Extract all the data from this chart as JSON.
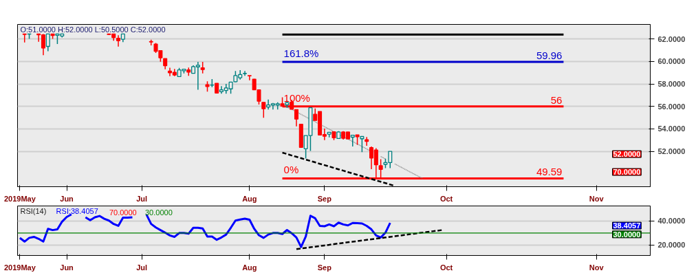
{
  "chart_data": [
    {
      "type": "candlestick",
      "ylim": [
        48.85,
        63.3
      ],
      "grid": "y",
      "categories": [
        "2019May",
        null,
        null,
        null,
        null,
        null,
        null,
        null,
        null,
        null,
        "Jun",
        null,
        null,
        null,
        null,
        null,
        null,
        null,
        null,
        null,
        null,
        null,
        null,
        null,
        null,
        null,
        "Jul",
        null,
        null,
        null,
        null,
        null,
        null,
        null,
        null,
        null,
        null,
        null,
        null,
        null,
        null,
        null,
        null,
        null,
        null,
        null,
        null,
        null,
        null,
        "Aug",
        null,
        null,
        null,
        null,
        null,
        null,
        null,
        null,
        null,
        null,
        null,
        null,
        null,
        null,
        null,
        "Sep",
        null,
        null,
        null,
        null,
        null,
        null,
        null,
        null,
        null,
        null,
        null,
        null,
        null,
        null,
        null,
        null,
        null,
        null,
        null,
        null,
        null,
        null,
        null,
        null,
        null,
        "Oct",
        null,
        null,
        null,
        null,
        null,
        null,
        null,
        null,
        null,
        null,
        null,
        null,
        null,
        null,
        null,
        null,
        null,
        null,
        null,
        null,
        null,
        null,
        null,
        null,
        null,
        null,
        null,
        null,
        null,
        null,
        null,
        "Nov",
        null,
        null,
        null,
        null,
        null,
        null,
        null,
        null,
        null,
        null,
        null
      ],
      "yticks": [
        {
          "value": 52,
          "label": "52.0000"
        },
        {
          "value": 54,
          "label": "54.0000"
        },
        {
          "value": 56,
          "label": "56.0000"
        },
        {
          "value": 58,
          "label": "58.0000"
        },
        {
          "value": 60,
          "label": "60.0000"
        },
        {
          "value": 62,
          "label": "62.0000"
        }
      ],
      "ohlc": [
        null,
        [
          62.45,
          62.45,
          61.69,
          62.41
        ],
        [
          62.43,
          62.45,
          62.02,
          62.45
        ],
        null,
        [
          62.45,
          62.45,
          61.75,
          62.37
        ],
        [
          62.37,
          62.45,
          60.56,
          61.2
        ],
        [
          61.34,
          62.45,
          60.91,
          62.45
        ],
        [
          62.45,
          62.45,
          62.02,
          62.31
        ],
        [
          62.33,
          62.45,
          61.55,
          62.45
        ],
        [
          62.27,
          62.45,
          62.13,
          62.45
        ],
        null,
        null,
        null,
        null,
        null,
        null,
        null,
        null,
        null,
        [
          62.45,
          62.45,
          62.37,
          62.4
        ],
        [
          62.45,
          62.45,
          61.85,
          62.13
        ],
        [
          62.06,
          62.33,
          61.32,
          61.85
        ],
        [
          61.98,
          62.45,
          61.73,
          62.45
        ],
        null,
        null,
        null,
        null,
        null,
        [
          61.77,
          61.94,
          61.44,
          61.74
        ],
        [
          61.55,
          61.65,
          60.76,
          60.91
        ],
        [
          60.97,
          60.97,
          59.98,
          60.33
        ],
        [
          60.26,
          60.26,
          59.31,
          59.62
        ],
        [
          59.15,
          59.44,
          58.69,
          59.0
        ],
        [
          59.03,
          59.33,
          58.69,
          58.8
        ],
        [
          58.65,
          59.42,
          58.65,
          59.25
        ],
        [
          59.17,
          59.31,
          58.94,
          59.31
        ],
        [
          59.25,
          59.46,
          58.73,
          59.05
        ],
        [
          58.94,
          59.66,
          58.94,
          59.54
        ],
        [
          59.52,
          59.97,
          57.48,
          59.67
        ],
        [
          59.44,
          59.97,
          58.94,
          59.28
        ],
        [
          57.93,
          58.24,
          57.31,
          57.77
        ],
        [
          57.89,
          58.43,
          57.72,
          57.91
        ],
        [
          58.05,
          58.05,
          57.19,
          57.19
        ],
        [
          57.31,
          57.81,
          57.13,
          57.47
        ],
        [
          57.42,
          58.01,
          57.13,
          57.64
        ],
        [
          57.56,
          58.19,
          57.13,
          58.16
        ],
        [
          58.2,
          59.15,
          58.15,
          58.74
        ],
        [
          58.55,
          59.23,
          58.38,
          58.84
        ],
        [
          58.92,
          59.15,
          58.73,
          58.94
        ],
        [
          58.74,
          58.74,
          58.32,
          58.72
        ],
        [
          58.43,
          58.45,
          57.48,
          57.48
        ],
        [
          57.47,
          57.47,
          56.17,
          56.46
        ],
        [
          56.36,
          56.36,
          54.99,
          55.79
        ],
        [
          55.94,
          56.61,
          55.72,
          56.13
        ],
        [
          56.11,
          56.3,
          55.72,
          56.24
        ],
        [
          56.11,
          56.36,
          55.72,
          56.24
        ],
        [
          56.24,
          56.81,
          56.03,
          56.03
        ],
        [
          56.14,
          56.52,
          55.88,
          56.34
        ],
        [
          56.38,
          56.6,
          55.74,
          55.74
        ],
        [
          55.72,
          55.72,
          54.23,
          54.87
        ],
        [
          54.42,
          54.42,
          52.35,
          52.35
        ],
        [
          52.23,
          53.41,
          51.36,
          53.41
        ],
        [
          53.41,
          55.88,
          52.04,
          55.88
        ],
        [
          55.3,
          55.82,
          54.75,
          54.75
        ],
        [
          55.55,
          55.55,
          53.45,
          53.45
        ],
        [
          53.49,
          54.03,
          53.0,
          53.35
        ],
        [
          53.53,
          53.7,
          53.24,
          53.7
        ],
        [
          53.74,
          53.74,
          53.0,
          53.2
        ],
        [
          53.14,
          53.8,
          53.14,
          53.72
        ],
        [
          53.72,
          53.8,
          53.05,
          53.16
        ],
        [
          53.72,
          53.72,
          53.1,
          53.1
        ],
        [
          53.26,
          53.44,
          52.43,
          53.44
        ],
        [
          53.47,
          53.47,
          52.58,
          53.3
        ],
        [
          53.12,
          53.32,
          51.93,
          53.32
        ],
        [
          53.03,
          53.28,
          52.49,
          52.89
        ],
        [
          52.33,
          52.43,
          50.41,
          51.4
        ],
        [
          52.12,
          52.28,
          49.58,
          50.8
        ],
        [
          50.72,
          51.3,
          49.67,
          50.39
        ],
        [
          50.84,
          51.35,
          50.5,
          51.0
        ],
        [
          51.0,
          52.0,
          50.5,
          52.0
        ],
        null,
        null,
        null,
        null,
        null,
        null,
        null,
        null,
        null,
        null,
        null,
        null,
        null,
        null,
        null,
        null,
        null,
        null,
        null,
        null,
        null,
        null,
        null,
        null,
        null,
        null,
        null,
        null,
        null,
        null,
        null,
        null,
        null,
        null,
        null,
        null,
        null,
        null,
        null,
        null,
        null,
        null,
        null,
        null,
        null,
        null,
        null,
        null,
        null,
        null,
        null,
        null,
        null,
        null,
        null
      ],
      "colors": [
        null,
        "#ff0000",
        "#008080",
        null,
        "#ff0000",
        "#ff0000",
        "#008080",
        "#ff0000",
        "#008080",
        "#008080",
        null,
        null,
        null,
        null,
        null,
        null,
        null,
        null,
        null,
        "#ff0000",
        "#ff0000",
        "#ff0000",
        "#008080",
        null,
        null,
        null,
        null,
        null,
        "#ff0000",
        "#ff0000",
        "#ff0000",
        "#ff0000",
        "#ff0000",
        "#ff0000",
        "#008080",
        "#008080",
        "#ff0000",
        "#008080",
        "#008080",
        "#ff0000",
        "#ff0000",
        "#008080",
        "#ff0000",
        "#008080",
        "#008080",
        "#008080",
        "#008080",
        "#008080",
        "#008080",
        "#ff0000",
        "#ff0000",
        "#ff0000",
        "#ff0000",
        "#008080",
        "#008080",
        "#008080",
        "#ff0000",
        "#008080",
        "#ff0000",
        "#ff0000",
        "#ff0000",
        "#008080",
        "#008080",
        "#ff0000",
        "#ff0000",
        "#ff0000",
        "#008080",
        "#ff0000",
        "#008080",
        "#ff0000",
        "#ff0000",
        "#008080",
        "#ff0000",
        "#008080",
        "#ff0000",
        "#ff0000",
        "#ff0000",
        "#ff0000",
        "#008080",
        "#008080",
        null,
        null,
        null,
        null,
        null,
        null,
        null,
        null,
        null,
        null,
        null,
        null,
        null,
        null,
        null,
        null,
        null,
        null,
        null,
        null,
        null,
        null,
        null,
        null,
        null,
        null,
        null,
        null,
        null,
        null,
        null,
        null,
        null,
        null,
        null,
        null,
        null,
        null,
        null,
        null,
        null,
        null,
        null,
        null,
        null,
        null,
        null,
        null,
        null,
        null,
        null,
        null,
        null,
        null,
        null
      ],
      "series": [
        {
          "type": "line",
          "color": "#000000",
          "line_style": "solid",
          "values": [
            null,
            null,
            null,
            null,
            null,
            null,
            null,
            null,
            null,
            null,
            null,
            null,
            null,
            null,
            null,
            null,
            null,
            null,
            null,
            null,
            null,
            null,
            null,
            null,
            null,
            null,
            null,
            null,
            null,
            null,
            null,
            null,
            null,
            null,
            null,
            null,
            null,
            null,
            null,
            null,
            null,
            null,
            null,
            null,
            null,
            null,
            null,
            null,
            null,
            null,
            null,
            null,
            null,
            null,
            null,
            null,
            62.4,
            62.4,
            62.4,
            62.4,
            62.4,
            62.4,
            62.4,
            62.4,
            62.4,
            62.4,
            62.4,
            62.4,
            62.4,
            62.4,
            62.4,
            62.4,
            62.4,
            62.4,
            62.4,
            62.4,
            62.4,
            62.4,
            62.4,
            62.4,
            62.4,
            62.4,
            62.4,
            62.4,
            62.4,
            62.4,
            62.4,
            62.4,
            62.4,
            62.4,
            62.4,
            62.4,
            62.4,
            62.4,
            62.4,
            62.4,
            62.4,
            62.4,
            62.4,
            62.4,
            62.4,
            62.4,
            62.4,
            62.4,
            62.4,
            62.4,
            62.4,
            62.4,
            62.4,
            62.4,
            62.4,
            62.4,
            62.4,
            62.4,
            62.4,
            62.4,
            62.4,
            null,
            null,
            null,
            null,
            null,
            null,
            null,
            null,
            null,
            null,
            null,
            null,
            null,
            null,
            null,
            null,
            null,
            null
          ]
        },
        {
          "type": "line",
          "color": "#0000cc",
          "line_style": "solid",
          "values": [
            null,
            null,
            null,
            null,
            null,
            null,
            null,
            null,
            null,
            null,
            null,
            null,
            null,
            null,
            null,
            null,
            null,
            null,
            null,
            null,
            null,
            null,
            null,
            null,
            null,
            null,
            null,
            null,
            null,
            null,
            null,
            null,
            null,
            null,
            null,
            null,
            null,
            null,
            null,
            null,
            null,
            null,
            null,
            null,
            null,
            null,
            null,
            null,
            null,
            null,
            null,
            null,
            null,
            null,
            null,
            null,
            59.96,
            59.96,
            59.96,
            59.96,
            59.96,
            59.96,
            59.96,
            59.96,
            59.96,
            59.96,
            59.96,
            59.96,
            59.96,
            59.96,
            59.96,
            59.96,
            59.96,
            59.96,
            59.96,
            59.96,
            59.96,
            59.96,
            59.96,
            59.96,
            59.96,
            59.96,
            59.96,
            59.96,
            59.96,
            59.96,
            59.96,
            59.96,
            59.96,
            59.96,
            59.96,
            59.96,
            59.96,
            59.96,
            59.96,
            59.96,
            59.96,
            59.96,
            59.96,
            59.96,
            59.96,
            59.96,
            59.96,
            59.96,
            59.96,
            59.96,
            59.96,
            59.96,
            59.96,
            59.96,
            59.96,
            59.96,
            59.96,
            59.96,
            59.96,
            59.96,
            59.96,
            null,
            null,
            null,
            null,
            null,
            null,
            null,
            null,
            null,
            null,
            null,
            null,
            null,
            null,
            null,
            null,
            null,
            null
          ]
        },
        {
          "type": "line",
          "color": "#ff0000",
          "line_style": "solid",
          "values": [
            null,
            null,
            null,
            null,
            null,
            null,
            null,
            null,
            null,
            null,
            null,
            null,
            null,
            null,
            null,
            null,
            null,
            null,
            null,
            null,
            null,
            null,
            null,
            null,
            null,
            null,
            null,
            null,
            null,
            null,
            null,
            null,
            null,
            null,
            null,
            null,
            null,
            null,
            null,
            null,
            null,
            null,
            null,
            null,
            null,
            null,
            null,
            null,
            null,
            null,
            null,
            null,
            null,
            null,
            null,
            null,
            56,
            56,
            56,
            56,
            56,
            56,
            56,
            56,
            56,
            56,
            56,
            56,
            56,
            56,
            56,
            56,
            56,
            56,
            56,
            56,
            56,
            56,
            56,
            56,
            56,
            56,
            56,
            56,
            56,
            56,
            56,
            56,
            56,
            56,
            56,
            56,
            56,
            56,
            56,
            56,
            56,
            56,
            56,
            56,
            56,
            56,
            56,
            56,
            56,
            56,
            56,
            56,
            56,
            56,
            56,
            56,
            56,
            56,
            56,
            56,
            56,
            null,
            null,
            null,
            null,
            null,
            null,
            null,
            null,
            null,
            null,
            null,
            null,
            null,
            null,
            null,
            null,
            null,
            null
          ]
        },
        {
          "type": "line",
          "color": "#ff0000",
          "line_style": "solid",
          "values": [
            null,
            null,
            null,
            null,
            null,
            null,
            null,
            null,
            null,
            null,
            null,
            null,
            null,
            null,
            null,
            null,
            null,
            null,
            null,
            null,
            null,
            null,
            null,
            null,
            null,
            null,
            null,
            null,
            null,
            null,
            null,
            null,
            null,
            null,
            null,
            null,
            null,
            null,
            null,
            null,
            null,
            null,
            null,
            null,
            null,
            null,
            null,
            null,
            null,
            null,
            null,
            null,
            null,
            null,
            null,
            null,
            49.59,
            49.59,
            49.59,
            49.59,
            49.59,
            49.59,
            49.59,
            49.59,
            49.59,
            49.59,
            49.59,
            49.59,
            49.59,
            49.59,
            49.59,
            49.59,
            49.59,
            49.59,
            49.59,
            49.59,
            49.59,
            49.59,
            49.59,
            49.59,
            49.59,
            49.59,
            49.59,
            49.59,
            49.59,
            49.59,
            49.59,
            49.59,
            49.59,
            49.59,
            49.59,
            49.59,
            49.59,
            49.59,
            49.59,
            49.59,
            49.59,
            49.59,
            49.59,
            49.59,
            49.59,
            49.59,
            49.59,
            49.59,
            49.59,
            49.59,
            49.59,
            49.59,
            49.59,
            49.59,
            49.59,
            49.59,
            49.59,
            49.59,
            49.59,
            49.59,
            49.59,
            null,
            null,
            null,
            null,
            null,
            null,
            null,
            null,
            null,
            null,
            null,
            null,
            null,
            null,
            null,
            null,
            null,
            null
          ]
        },
        {
          "type": "line",
          "color": "#000000",
          "line_style": "dashed",
          "values": [
            null,
            null,
            null,
            null,
            null,
            null,
            null,
            null,
            null,
            null,
            null,
            null,
            null,
            null,
            null,
            null,
            null,
            null,
            null,
            null,
            null,
            null,
            null,
            null,
            null,
            null,
            null,
            null,
            null,
            null,
            null,
            null,
            null,
            null,
            null,
            null,
            null,
            null,
            null,
            null,
            null,
            null,
            null,
            null,
            null,
            null,
            null,
            null,
            null,
            null,
            null,
            null,
            null,
            null,
            null,
            null,
            51.88,
            51.76,
            51.63,
            51.51,
            51.39,
            51.26,
            51.14,
            51.02,
            50.89,
            50.77,
            50.65,
            50.52,
            50.4,
            50.28,
            50.15,
            50.03,
            49.91,
            49.78,
            49.66,
            49.54,
            49.41,
            49.29,
            49.17,
            49.04,
            48.92,
            null,
            null,
            null,
            null,
            null,
            null,
            null,
            null,
            null,
            null,
            null,
            null,
            null,
            null,
            null,
            null,
            null,
            null,
            null,
            null,
            null,
            null,
            null,
            null,
            null,
            null,
            null,
            null,
            null,
            null,
            null,
            null,
            null,
            null,
            null,
            null,
            null,
            null,
            null,
            null,
            null,
            null,
            null,
            null,
            null,
            null,
            null,
            null,
            null,
            null,
            null,
            null,
            null,
            null
          ]
        },
        {
          "type": "line",
          "color": "#808080",
          "line_style": "dotted",
          "values": [
            null,
            null,
            null,
            null,
            null,
            null,
            null,
            null,
            null,
            null,
            null,
            null,
            null,
            null,
            null,
            null,
            null,
            null,
            null,
            null,
            null,
            null,
            null,
            null,
            null,
            null,
            null,
            null,
            null,
            null,
            null,
            null,
            null,
            null,
            null,
            null,
            null,
            null,
            null,
            null,
            null,
            null,
            null,
            null,
            null,
            null,
            null,
            null,
            null,
            null,
            null,
            null,
            null,
            null,
            null,
            null,
            56.17,
            55.95,
            55.73,
            55.51,
            55.29,
            55.07,
            54.85,
            54.63,
            54.41,
            54.19,
            53.97,
            53.75,
            53.53,
            53.31,
            53.09,
            52.87,
            52.65,
            52.43,
            52.21,
            51.98,
            null,
            51.54,
            51.32,
            null,
            50.88,
            50.66,
            50.44,
            50.22,
            50.0,
            49.78,
            49.56,
            null,
            null,
            null,
            null,
            null,
            null,
            null,
            null,
            null,
            null,
            null,
            null,
            null,
            null,
            null,
            null,
            null,
            null,
            null,
            null,
            null,
            null,
            null,
            null,
            null,
            null,
            null,
            null,
            null,
            null,
            null,
            null,
            null,
            null,
            null,
            null,
            null,
            null,
            null,
            null,
            null,
            null,
            null,
            null,
            null,
            null,
            null,
            null
          ]
        }
      ],
      "annotations": [
        "O:51.0000 H:52.0000 L:50.5000 C:52.0000",
        "161.8%",
        "59.96",
        "100%",
        "56",
        "0%",
        "49.59",
        "52.0000",
        "70.0000"
      ]
    },
    {
      "type": "line",
      "ylim": [
        11.4,
        52.4
      ],
      "grid": "y",
      "categories": [
        "2019May",
        null,
        null,
        null,
        null,
        null,
        null,
        null,
        null,
        null,
        "Jun",
        null,
        null,
        null,
        null,
        null,
        null,
        null,
        null,
        null,
        null,
        null,
        null,
        null,
        null,
        null,
        "Jul",
        null,
        null,
        null,
        null,
        null,
        null,
        null,
        null,
        null,
        null,
        null,
        null,
        null,
        null,
        null,
        null,
        null,
        null,
        null,
        null,
        null,
        null,
        "Aug",
        null,
        null,
        null,
        null,
        null,
        null,
        null,
        null,
        null,
        null,
        null,
        null,
        null,
        null,
        null,
        "Sep",
        null,
        null,
        null,
        null,
        null,
        null,
        null,
        null,
        null,
        null,
        null,
        null,
        null,
        null,
        null,
        null,
        null,
        null,
        null,
        null,
        null,
        null,
        null,
        null,
        null,
        "Oct",
        null,
        null,
        null,
        null,
        null,
        null,
        null,
        null,
        null,
        null,
        null,
        null,
        null,
        null,
        null,
        null,
        null,
        null,
        null,
        null,
        null,
        null,
        null,
        null,
        null,
        null,
        null,
        null,
        null,
        null,
        null,
        "Nov",
        null,
        null,
        null,
        null,
        null,
        null,
        null,
        null,
        null,
        null,
        null
      ],
      "yticks": [
        {
          "value": 20,
          "label": "20.0000"
        },
        {
          "value": 40,
          "label": "40.0000"
        }
      ],
      "series": [
        {
          "type": "line",
          "color": "#0000ff",
          "line_style": "solid",
          "values": [
            25.9,
            22.9,
            26.0,
            26.8,
            25.2,
            22.9,
            33.5,
            32.4,
            33.0,
            39.4,
            43.3,
            45.4,
            null,
            null,
            43.0,
            40.6,
            43.0,
            44.1,
            41.8,
            40.3,
            37.5,
            35.9,
            42.7,
            42.7,
            43.0,
            null,
            null,
            45.4,
            37.5,
            34.6,
            32.4,
            30.3,
            28.0,
            26.8,
            30.0,
            30.1,
            29.5,
            34.3,
            34.3,
            33.7,
            27.1,
            27.1,
            24.4,
            26.3,
            28.7,
            34.3,
            40.3,
            41.1,
            41.9,
            41.0,
            33.5,
            28.2,
            26.0,
            28.7,
            30.0,
            30.0,
            29.2,
            32.5,
            29.8,
            26.3,
            18.4,
            27.1,
            44.3,
            42.2,
            35.9,
            35.6,
            37.1,
            35.6,
            38.6,
            37.1,
            36.3,
            38.3,
            38.1,
            37.9,
            35.9,
            33.0,
            28.0,
            26.3,
            30.3,
            38.4,
            null,
            null,
            null,
            null,
            null,
            null,
            null,
            null,
            null,
            null,
            null,
            null,
            null,
            null,
            null,
            null,
            null,
            null,
            null,
            null,
            null,
            null,
            null,
            null,
            null,
            null,
            null,
            null,
            null,
            null,
            null,
            null,
            null,
            null,
            null,
            null,
            null,
            null,
            null,
            null,
            null,
            null,
            null,
            null,
            null,
            null,
            null,
            null,
            null,
            null,
            null,
            null,
            null,
            null,
            null
          ]
        },
        {
          "type": "line",
          "color": "#000000",
          "line_style": "dashed",
          "values": [
            null,
            null,
            null,
            null,
            null,
            null,
            null,
            null,
            null,
            null,
            null,
            null,
            null,
            null,
            null,
            null,
            null,
            null,
            null,
            null,
            null,
            null,
            null,
            null,
            null,
            null,
            null,
            null,
            null,
            null,
            null,
            null,
            null,
            null,
            null,
            null,
            null,
            null,
            null,
            null,
            null,
            null,
            null,
            null,
            null,
            null,
            null,
            null,
            null,
            null,
            null,
            null,
            null,
            null,
            null,
            null,
            null,
            null,
            null,
            16.7,
            17.2,
            17.7,
            18.2,
            18.7,
            19.2,
            19.7,
            20.2,
            20.8,
            21.3,
            21.8,
            22.3,
            22.8,
            23.3,
            23.8,
            24.3,
            24.8,
            25.3,
            25.8,
            26.3,
            26.8,
            27.3,
            27.8,
            28.4,
            28.9,
            29.4,
            29.9,
            30.4,
            30.9,
            31.4,
            31.9,
            32.4,
            null,
            null,
            null,
            null,
            null,
            null,
            null,
            null,
            null,
            null,
            null,
            null,
            null,
            null,
            null,
            null,
            null,
            null,
            null,
            null,
            null,
            null,
            null,
            null,
            null,
            null,
            null,
            null,
            null,
            null,
            null,
            null,
            null,
            null,
            null,
            null,
            null,
            null,
            null,
            null,
            null,
            null,
            null,
            null
          ]
        }
      ],
      "ref_lines": [
        {
          "axis": "y",
          "value": 30,
          "color": "#008000"
        }
      ],
      "annotations": [
        "RSI(14)",
        "RSI:38.4057",
        "70.0000",
        "30.0000",
        "38.4057",
        "30.0000"
      ]
    }
  ]
}
